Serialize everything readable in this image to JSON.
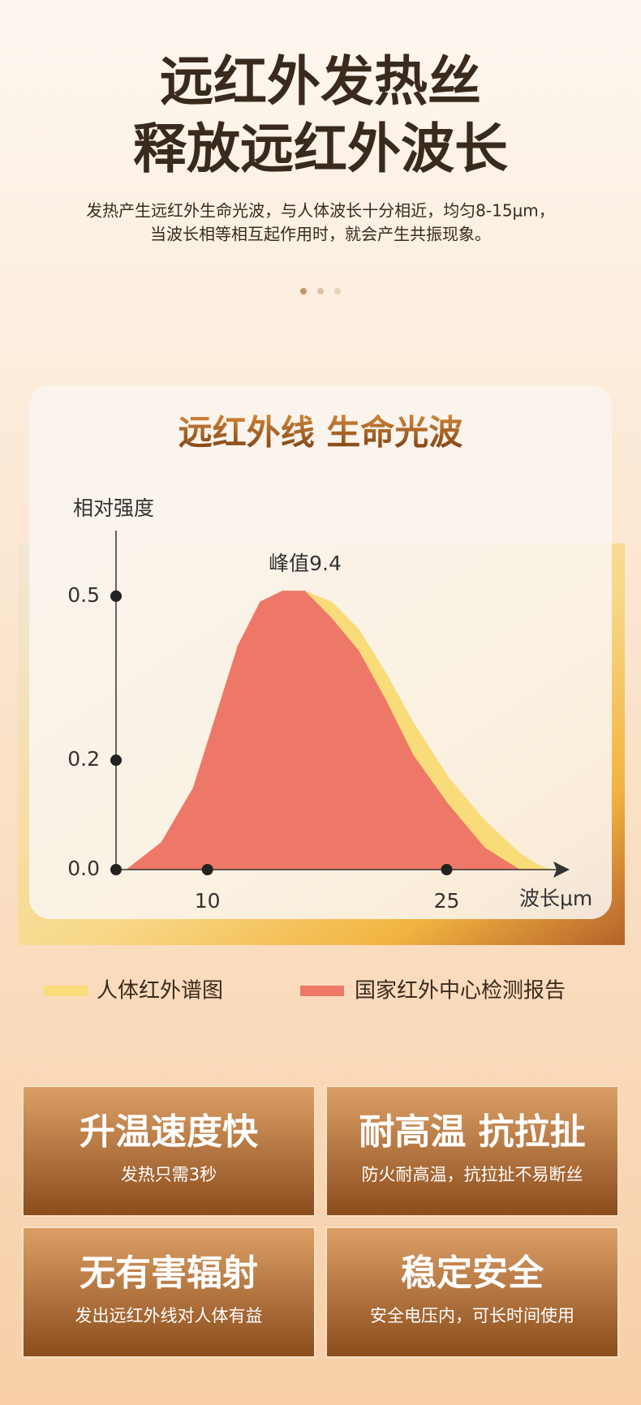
{
  "header": {
    "title_lines": [
      "远红外发热丝",
      "释放远红外波长"
    ],
    "subtitle_lines": [
      "发热产生远红外生命光波，与人体波长十分相近，均匀8-15μm，",
      "当波长相等相互起作用时，就会产生共振现象。"
    ]
  },
  "chart_data": {
    "type": "area",
    "title": "远红外线 生命光波",
    "y_label": "相对强度",
    "x_label": "波长μm",
    "annotation": "峰值9.4",
    "x": [
      4.9,
      7.1,
      9.1,
      10.5,
      11.9,
      13.3,
      14.7,
      16.1,
      17.8,
      19.5,
      21.2,
      22.9,
      25.1,
      27.4,
      29.6,
      30.7,
      31.5
    ],
    "series": [
      {
        "name": "人体红外谱图",
        "color": "#f9dc7a",
        "values": [
          0,
          0.04,
          0.13,
          0.25,
          0.38,
          0.46,
          0.5,
          0.51,
          0.49,
          0.44,
          0.36,
          0.27,
          0.17,
          0.09,
          0.03,
          0.01,
          0
        ]
      },
      {
        "name": "国家红外中心检测报告",
        "color": "#ee7868",
        "values": [
          0,
          0.05,
          0.15,
          0.28,
          0.41,
          0.49,
          0.51,
          0.51,
          0.46,
          0.4,
          0.31,
          0.21,
          0.12,
          0.04,
          0,
          0,
          0
        ]
      }
    ],
    "xlim": [
      4.27,
      32.4
    ],
    "ylim": [
      0,
      0.62
    ],
    "xticks": [
      10,
      25
    ],
    "yticks": [
      {
        "value": 0,
        "label": "0.0"
      },
      0.2,
      0.5
    ]
  },
  "features": [
    {
      "title": "升温速度快",
      "subtitle": "发热只需3秒"
    },
    {
      "title": "耐高温 抗拉扯",
      "subtitle": "防火耐高温，抗拉扯不易断丝"
    },
    {
      "title": "无有害辐射",
      "subtitle": "发出远红外线对人体有益"
    },
    {
      "title": "稳定安全",
      "subtitle": "安全电压内，可长时间使用"
    }
  ]
}
